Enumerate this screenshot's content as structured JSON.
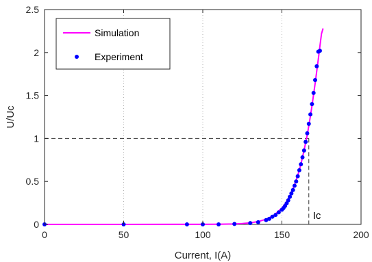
{
  "chart_data": {
    "type": "line",
    "xlabel": "Current, I(A)",
    "ylabel": "U/Uc",
    "xlim": [
      0,
      200
    ],
    "ylim": [
      0,
      2.5
    ],
    "xticks": [
      0,
      50,
      100,
      150,
      200
    ],
    "yticks": [
      0,
      0.5,
      1,
      1.5,
      2,
      2.5
    ],
    "xtick_labels": [
      "0",
      "50",
      "100",
      "150",
      "200"
    ],
    "ytick_labels": [
      "0",
      "0.5",
      "1",
      "1.5",
      "2",
      "2.5"
    ],
    "grid": "vertical dotted",
    "legend_position": "top-left",
    "series": [
      {
        "name": "Simulation",
        "kind": "line",
        "color": "#ff00ff",
        "x": [
          0,
          50,
          100,
          110,
          120,
          125,
          130,
          135,
          140,
          145,
          150,
          152,
          154,
          156,
          158,
          160,
          162,
          164,
          165,
          166,
          167,
          168,
          169,
          170,
          171,
          172,
          173,
          174,
          175,
          176
        ],
        "y": [
          0,
          0,
          0.0005,
          0.0015,
          0.005,
          0.01,
          0.018,
          0.033,
          0.06,
          0.107,
          0.19,
          0.238,
          0.297,
          0.37,
          0.46,
          0.57,
          0.7,
          0.86,
          0.95,
          1.04,
          1.15,
          1.26,
          1.38,
          1.51,
          1.64,
          1.78,
          1.92,
          2.07,
          2.22,
          2.28
        ]
      },
      {
        "name": "Experiment",
        "kind": "scatter",
        "color": "#0000ff",
        "x": [
          0,
          50,
          90,
          100,
          110,
          120,
          130,
          135,
          140,
          142,
          144,
          146,
          148,
          150,
          151,
          152,
          153,
          154,
          155,
          156,
          157,
          158,
          159,
          160,
          161,
          162,
          163,
          164,
          165,
          166,
          167,
          168,
          169,
          170,
          171,
          172,
          173,
          174
        ],
        "y": [
          0,
          0,
          0,
          0,
          0,
          0.005,
          0.015,
          0.025,
          0.05,
          0.065,
          0.09,
          0.11,
          0.14,
          0.17,
          0.19,
          0.215,
          0.245,
          0.28,
          0.32,
          0.36,
          0.4,
          0.45,
          0.5,
          0.56,
          0.63,
          0.7,
          0.78,
          0.86,
          0.96,
          1.06,
          1.17,
          1.28,
          1.4,
          1.53,
          1.68,
          1.84,
          2.01,
          2.02
        ]
      }
    ],
    "annotations": {
      "ic_label": "Ic",
      "reference_x": 167,
      "reference_y": 1
    }
  }
}
